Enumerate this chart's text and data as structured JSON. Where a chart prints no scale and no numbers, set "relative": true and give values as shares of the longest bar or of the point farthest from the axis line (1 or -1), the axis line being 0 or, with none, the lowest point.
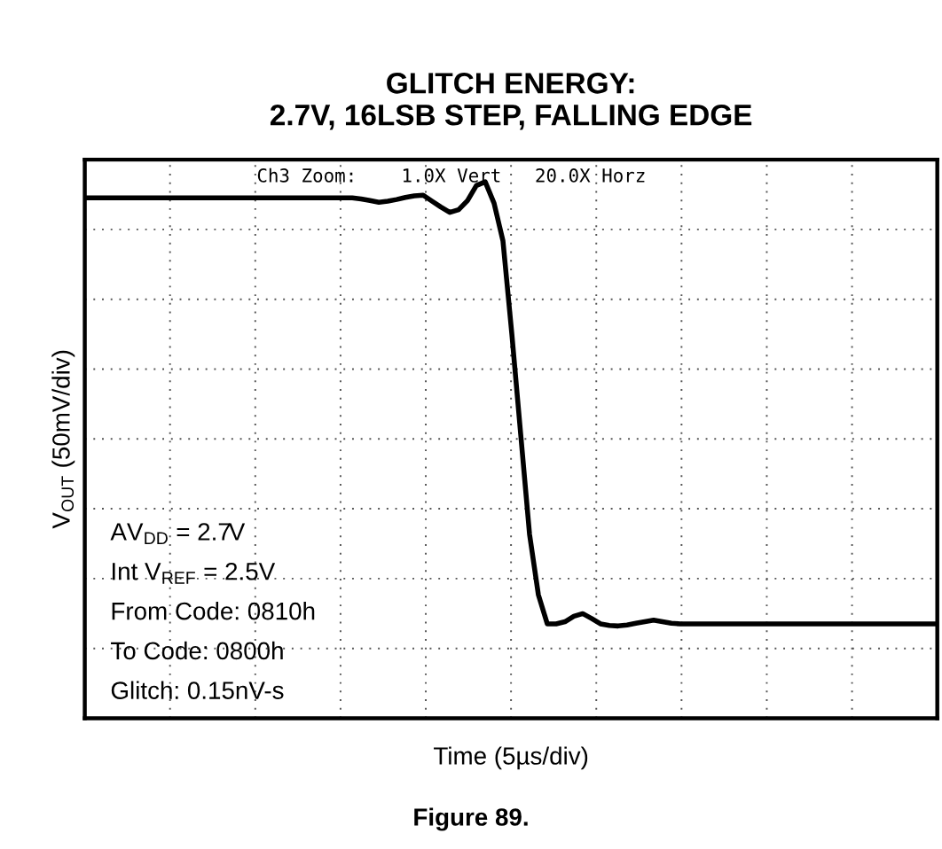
{
  "chart_data": {
    "type": "line",
    "relative": true,
    "title": "GLITCH ENERGY:\n2.7V, 16LSB STEP, FALLING EDGE",
    "xlabel": "Time (5µs/div)",
    "ylabel": "V$_{OUT}$ (50mV/div)",
    "grid": true,
    "marker": "none",
    "line_style": "solid",
    "categories": [
      null,
      null,
      null,
      null,
      null,
      null,
      null,
      null,
      null,
      null,
      null,
      null,
      null,
      null,
      null,
      null,
      null,
      null,
      null,
      null,
      null,
      null,
      null,
      null,
      null,
      null,
      null,
      null,
      null,
      null,
      null,
      null,
      null,
      null,
      null,
      null,
      null,
      null,
      null,
      null,
      null,
      null,
      null,
      null,
      null,
      null,
      null,
      null,
      null,
      null,
      null,
      null,
      null,
      null,
      null,
      null,
      null,
      null,
      null,
      null,
      null,
      null,
      null,
      null,
      null,
      null,
      null,
      null,
      null,
      null,
      null,
      null,
      null,
      null,
      null,
      null,
      null,
      null,
      null,
      null,
      null,
      null,
      null,
      null,
      null,
      null,
      null,
      null,
      null,
      null,
      null,
      null,
      null,
      null,
      null,
      null,
      null
    ],
    "series": [
      {
        "color": "#000000",
        "values": [
          0.97,
          0.97,
          0.97,
          0.97,
          0.97,
          0.97,
          0.97,
          0.97,
          0.97,
          0.97,
          0.97,
          0.97,
          0.97,
          0.97,
          0.97,
          0.97,
          0.97,
          0.97,
          0.97,
          0.97,
          0.97,
          0.97,
          0.97,
          0.97,
          0.97,
          0.97,
          0.97,
          0.97,
          0.97,
          0.97,
          0.97,
          0.968,
          0.965,
          0.962,
          0.964,
          0.967,
          0.971,
          0.974,
          0.975,
          0.964,
          0.953,
          0.943,
          0.948,
          0.965,
          0.993,
          1.0,
          0.96,
          0.89,
          0.717,
          0.53,
          0.343,
          0.23,
          0.176,
          0.176,
          0.18,
          0.19,
          0.195,
          0.186,
          0.176,
          0.173,
          0.172,
          0.174,
          0.177,
          0.18,
          0.183,
          0.18,
          0.177,
          0.176,
          0.176,
          0.176,
          0.176,
          0.176,
          0.176,
          0.176,
          0.176,
          0.176,
          0.176,
          0.176,
          0.176,
          0.176,
          0.176,
          0.176,
          0.176,
          0.176,
          0.176,
          0.176,
          0.176,
          0.176,
          0.176,
          0.176,
          0.176,
          0.176,
          0.176,
          0.176,
          0.176,
          0.176,
          0.176
        ]
      }
    ],
    "annotations": [
      "Ch3 Zoom:    1.0X Vert   20.0X Horz",
      "AV$_{DD}$ = 2.7V",
      "Int V$_{REF}$ = 2.5V",
      "From Code: 0810h",
      "To Code: 0800h",
      "Glitch: 0.15nV-s",
      "Figure 89."
    ]
  }
}
